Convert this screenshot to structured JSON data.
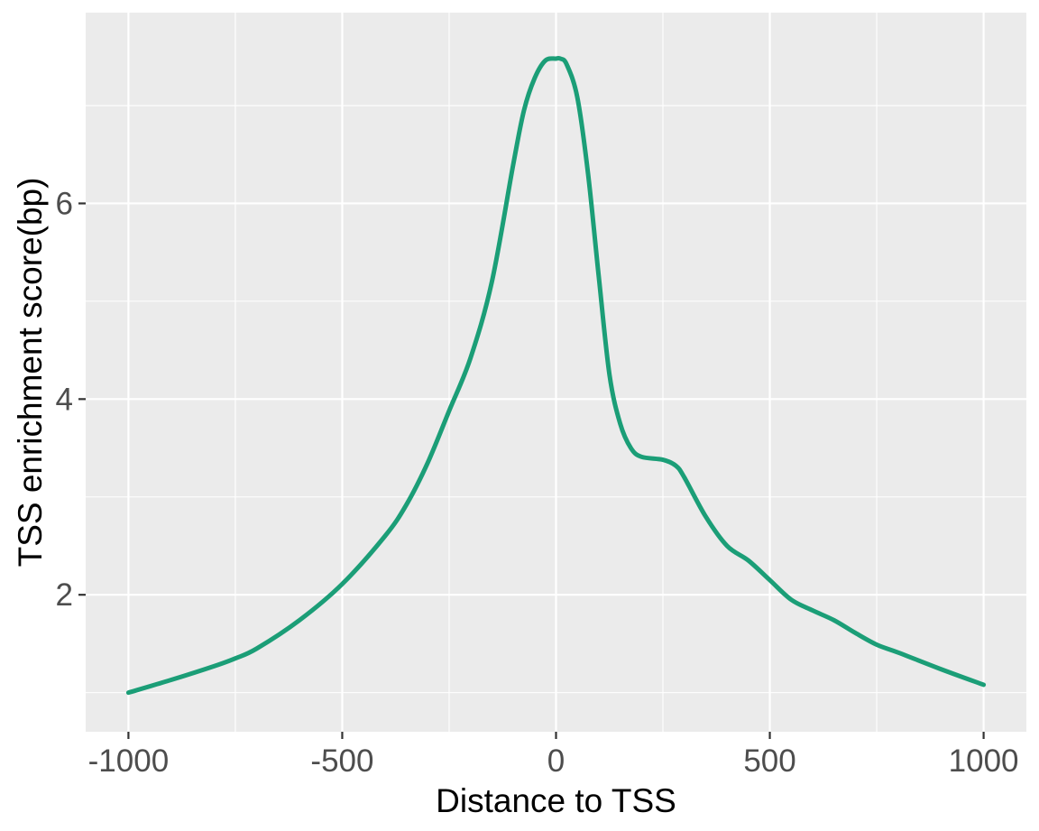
{
  "chart_data": {
    "type": "line",
    "title": "",
    "xlabel": "Distance to TSS",
    "ylabel": "TSS enrichment score(bp)",
    "xlim": [
      -1100,
      1100
    ],
    "ylim": [
      0.6,
      7.95
    ],
    "x_ticks": [
      -1000,
      -500,
      0,
      500,
      1000
    ],
    "x_tick_labels": [
      "-1000",
      "-500",
      "0",
      "500",
      "1000"
    ],
    "y_ticks": [
      2,
      4,
      6
    ],
    "y_tick_labels": [
      "2",
      "4",
      "6"
    ],
    "x_minor_ticks": [
      -750,
      -250,
      250,
      750
    ],
    "y_minor_ticks": [
      1,
      3,
      5,
      7
    ],
    "grid": true,
    "legend": "none",
    "colors": {
      "line": "#1b9e77",
      "panel_background": "#ebebeb",
      "grid": "#ffffff",
      "tick_label": "#4d4d4d",
      "axis_title": "#000000"
    },
    "series": [
      {
        "x": [
          -1000,
          -900,
          -800,
          -750,
          -700,
          -600,
          -500,
          -400,
          -350,
          -300,
          -250,
          -200,
          -150,
          -100,
          -75,
          -50,
          -25,
          0,
          10,
          25,
          50,
          75,
          100,
          125,
          150,
          175,
          200,
          250,
          280,
          300,
          350,
          400,
          450,
          500,
          550,
          600,
          650,
          700,
          750,
          800,
          900,
          1000
        ],
        "y": [
          1.0,
          1.13,
          1.27,
          1.35,
          1.45,
          1.74,
          2.11,
          2.6,
          2.92,
          3.35,
          3.88,
          4.42,
          5.2,
          6.4,
          6.95,
          7.28,
          7.46,
          7.48,
          7.48,
          7.42,
          7.08,
          6.3,
          5.25,
          4.25,
          3.75,
          3.5,
          3.41,
          3.38,
          3.32,
          3.2,
          2.8,
          2.5,
          2.35,
          2.15,
          1.95,
          1.84,
          1.74,
          1.61,
          1.49,
          1.41,
          1.24,
          1.08
        ]
      }
    ]
  }
}
